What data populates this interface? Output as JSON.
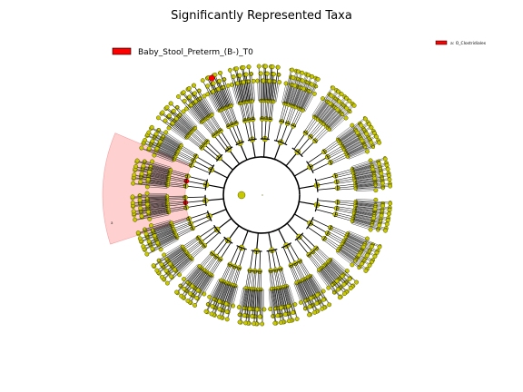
{
  "figure": {
    "title": "Significantly Represented Taxa",
    "legend_main": {
      "label": "Baby_Stool_Preterm_(B-)_T0",
      "swatch_color": "#ff0000"
    },
    "legend_clade": {
      "label": "a: O_Clostridiales",
      "swatch_color": "#ff0000"
    },
    "highlight_letter": "a"
  },
  "colors": {
    "node_fill": "#c8c800",
    "node_stroke": "#555500",
    "highlight_node": "#ff0000",
    "highlight_wedge": "rgba(255,120,120,0.35)",
    "branch": "#000000"
  }
}
